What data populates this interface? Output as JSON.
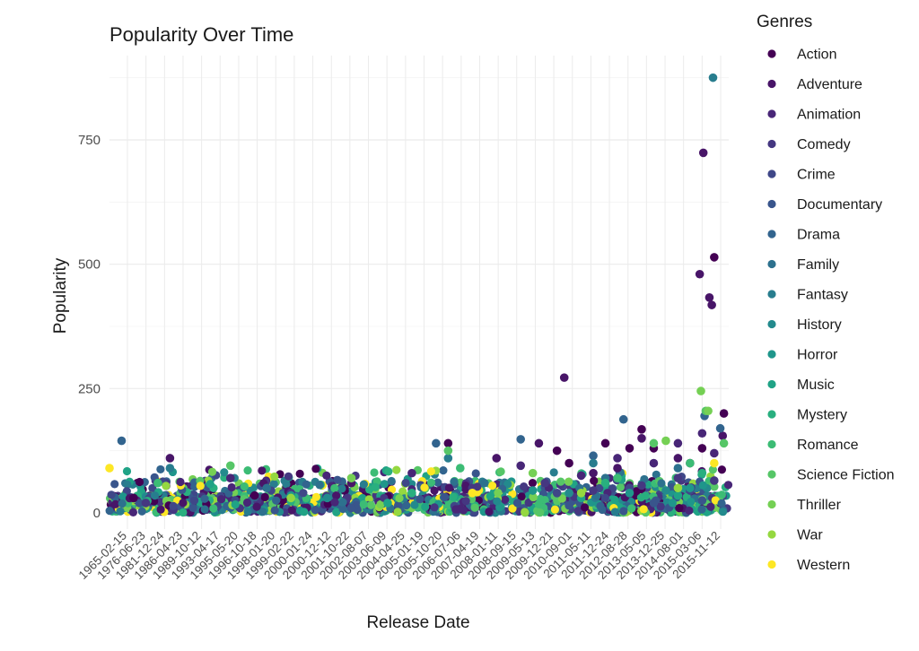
{
  "chart_data": {
    "type": "scatter",
    "title": "Popularity Over Time",
    "xlabel": "Release Date",
    "ylabel": "Popularity",
    "ylim": [
      0,
      880
    ],
    "y_ticks": [
      0,
      250,
      500,
      750
    ],
    "grid": true,
    "legend": {
      "title": "Genres",
      "placement": "right",
      "entries": [
        {
          "name": "Action",
          "color": "#440154"
        },
        {
          "name": "Adventure",
          "color": "#481568"
        },
        {
          "name": "Animation",
          "color": "#482677"
        },
        {
          "name": "Comedy",
          "color": "#453781"
        },
        {
          "name": "Crime",
          "color": "#3F4788"
        },
        {
          "name": "Documentary",
          "color": "#39558C"
        },
        {
          "name": "Drama",
          "color": "#32648E"
        },
        {
          "name": "Family",
          "color": "#2D718E"
        },
        {
          "name": "Fantasy",
          "color": "#287D8E"
        },
        {
          "name": "History",
          "color": "#238A8D"
        },
        {
          "name": "Horror",
          "color": "#1F968B"
        },
        {
          "name": "Music",
          "color": "#20A386"
        },
        {
          "name": "Mystery",
          "color": "#29AF7F"
        },
        {
          "name": "Romance",
          "color": "#3CBC75"
        },
        {
          "name": "Science Fiction",
          "color": "#56C667"
        },
        {
          "name": "Thriller",
          "color": "#75D054"
        },
        {
          "name": "War",
          "color": "#95D840"
        },
        {
          "name": "Western",
          "color": "#FDE725"
        }
      ]
    },
    "x_tick_labels": [
      "1965-02-15",
      "1976-06-23",
      "1981-12-24",
      "1986-04-23",
      "1989-10-12",
      "1993-04-17",
      "1995-05-20",
      "1996-10-18",
      "1998-01-20",
      "1999-02-22",
      "2000-01-24",
      "2000-12-12",
      "2001-10-22",
      "2002-08-07",
      "2003-06-09",
      "2004-04-25",
      "2005-01-19",
      "2005-10-20",
      "2006-07-06",
      "2007-04-19",
      "2008-01-11",
      "2008-09-15",
      "2009-05-13",
      "2009-12-21",
      "2010-09-01",
      "2011-05-11",
      "2011-12-24",
      "2012-08-28",
      "2013-05-05",
      "2013-12-25",
      "2014-08-01",
      "2015-03-06",
      "2015-11-12"
    ],
    "series": [
      {
        "name": "Action",
        "points": [
          [
            1967,
            30
          ],
          [
            1977,
            35
          ],
          [
            1993,
            140
          ],
          [
            2002,
            125
          ],
          [
            2003,
            100
          ],
          [
            2006,
            140
          ],
          [
            2008,
            130
          ],
          [
            2009,
            168
          ],
          [
            2010,
            130
          ],
          [
            2013,
            100
          ],
          [
            2014,
            130
          ],
          [
            2015,
            514
          ],
          [
            2015.8,
            200
          ]
        ]
      },
      {
        "name": "Adventure",
        "points": [
          [
            1970,
            110
          ],
          [
            1985,
            60
          ],
          [
            1997,
            110
          ],
          [
            2000.5,
            140
          ],
          [
            2002.6,
            272
          ],
          [
            2005,
            80
          ],
          [
            2007,
            90
          ],
          [
            2009,
            150
          ],
          [
            2012,
            110
          ],
          [
            2013.8,
            480
          ],
          [
            2014.1,
            724
          ],
          [
            2014.6,
            433
          ],
          [
            2014.8,
            418
          ],
          [
            2015.7,
            155
          ]
        ]
      },
      {
        "name": "Animation",
        "points": [
          [
            1975,
            70
          ],
          [
            1990,
            80
          ],
          [
            1999,
            95
          ],
          [
            2004,
            75
          ],
          [
            2007,
            110
          ],
          [
            2010,
            100
          ],
          [
            2012,
            140
          ],
          [
            2014,
            160
          ],
          [
            2015,
            120
          ]
        ]
      },
      {
        "name": "Comedy",
        "points": [
          [
            1968,
            20
          ],
          [
            1980,
            40
          ],
          [
            1995,
            50
          ],
          [
            2001,
            60
          ],
          [
            2005,
            45
          ],
          [
            2009,
            55
          ],
          [
            2012,
            70
          ],
          [
            2015,
            65
          ]
        ]
      },
      {
        "name": "Crime",
        "points": [
          [
            1972,
            25
          ],
          [
            1990,
            35
          ],
          [
            2002,
            40
          ],
          [
            2008,
            50
          ],
          [
            2013,
            45
          ]
        ]
      },
      {
        "name": "Documentary",
        "points": [
          [
            1985,
            10
          ],
          [
            2003,
            15
          ],
          [
            2010,
            20
          ],
          [
            2014,
            25
          ]
        ]
      },
      {
        "name": "Drama",
        "points": [
          [
            1966,
            145
          ],
          [
            1992,
            140
          ],
          [
            1999,
            148
          ],
          [
            2005,
            115
          ],
          [
            2007.5,
            188
          ],
          [
            2014.2,
            195
          ],
          [
            2015.5,
            170
          ]
        ]
      },
      {
        "name": "Family",
        "points": [
          [
            1978,
            50
          ],
          [
            1996,
            60
          ],
          [
            2006,
            70
          ],
          [
            2012,
            90
          ]
        ]
      },
      {
        "name": "Fantasy",
        "points": [
          [
            1970,
            90
          ],
          [
            1993,
            110
          ],
          [
            2005,
            100
          ],
          [
            2014.9,
            875
          ]
        ]
      },
      {
        "name": "History",
        "points": [
          [
            1983,
            30
          ],
          [
            2003,
            40
          ],
          [
            2011,
            45
          ]
        ]
      },
      {
        "name": "Horror",
        "points": [
          [
            1980,
            35
          ],
          [
            2000,
            45
          ],
          [
            2008,
            40
          ],
          [
            2013,
            50
          ]
        ]
      },
      {
        "name": "Music",
        "points": [
          [
            1988,
            20
          ],
          [
            2004,
            30
          ],
          [
            2012,
            35
          ]
        ]
      },
      {
        "name": "Mystery",
        "points": [
          [
            1990,
            40
          ],
          [
            2006,
            60
          ],
          [
            2014,
            80
          ]
        ]
      },
      {
        "name": "Romance",
        "points": [
          [
            1969,
            60
          ],
          [
            1994,
            90
          ],
          [
            2007,
            70
          ],
          [
            2013,
            100
          ]
        ]
      },
      {
        "name": "Science Fiction",
        "points": [
          [
            1975,
            95
          ],
          [
            1993,
            125
          ],
          [
            2010,
            140
          ],
          [
            2014.3,
            205
          ],
          [
            2015.8,
            140
          ]
        ]
      },
      {
        "name": "Thriller",
        "points": [
          [
            1985,
            70
          ],
          [
            2000,
            80
          ],
          [
            2011,
            145
          ],
          [
            2013.9,
            245
          ],
          [
            2014.5,
            205
          ]
        ]
      },
      {
        "name": "War",
        "points": [
          [
            1980,
            30
          ],
          [
            2004,
            40
          ],
          [
            2012,
            50
          ]
        ]
      },
      {
        "name": "Western",
        "points": [
          [
            1965,
            90
          ],
          [
            1995,
            40
          ],
          [
            2015,
            100
          ]
        ]
      }
    ]
  }
}
